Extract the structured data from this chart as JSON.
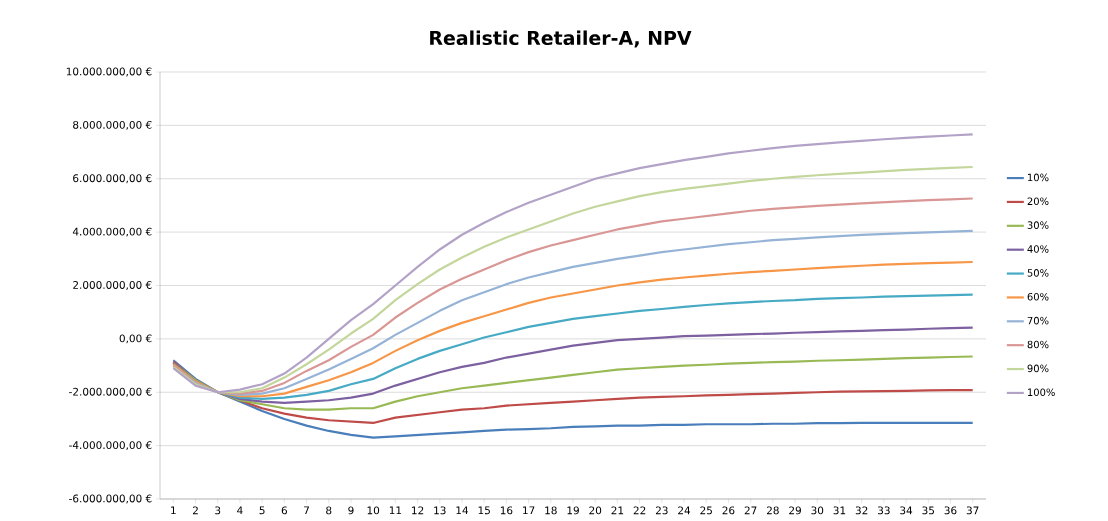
{
  "chart_data": {
    "type": "line",
    "title": "Realistic Retailer-A, NPV",
    "categories": [
      "1",
      "2",
      "3",
      "4",
      "5",
      "6",
      "7",
      "8",
      "9",
      "10",
      "11",
      "12",
      "13",
      "14",
      "15",
      "16",
      "17",
      "18",
      "19",
      "20",
      "21",
      "22",
      "23",
      "24",
      "25",
      "26",
      "27",
      "28",
      "29",
      "30",
      "31",
      "32",
      "33",
      "34",
      "35",
      "36",
      "37"
    ],
    "ylim": [
      -6000000,
      10000000
    ],
    "yticks": [
      {
        "value": -6000000,
        "label": "-6.000.000,00 €"
      },
      {
        "value": -4000000,
        "label": "-4.000.000,00 €"
      },
      {
        "value": -2000000,
        "label": "-2.000.000,00 €"
      },
      {
        "value": 0,
        "label": "0,00 €"
      },
      {
        "value": 2000000,
        "label": "2.000.000,00 €"
      },
      {
        "value": 4000000,
        "label": "4.000.000,00 €"
      },
      {
        "value": 6000000,
        "label": "6.000.000,00 €"
      },
      {
        "value": 8000000,
        "label": "8.000.000,00 €"
      },
      {
        "value": 10000000,
        "label": "10.000.000,00 €"
      }
    ],
    "grid": "y",
    "legend": "right",
    "marker": "none",
    "line_style": "solid",
    "series": [
      {
        "name": "10%",
        "color": "#4a7ebb",
        "values": [
          -800000,
          -1500000,
          -2000000,
          -2350000,
          -2700000,
          -3000000,
          -3250000,
          -3450000,
          -3600000,
          -3700000,
          -3650000,
          -3600000,
          -3550000,
          -3500000,
          -3450000,
          -3400000,
          -3380000,
          -3350000,
          -3300000,
          -3280000,
          -3250000,
          -3250000,
          -3220000,
          -3220000,
          -3200000,
          -3200000,
          -3200000,
          -3180000,
          -3180000,
          -3160000,
          -3160000,
          -3150000,
          -3150000,
          -3150000,
          -3150000,
          -3150000,
          -3150000
        ]
      },
      {
        "name": "20%",
        "color": "#be4b48",
        "values": [
          -850000,
          -1550000,
          -2000000,
          -2300000,
          -2600000,
          -2800000,
          -2950000,
          -3050000,
          -3100000,
          -3150000,
          -2950000,
          -2850000,
          -2750000,
          -2650000,
          -2600000,
          -2500000,
          -2450000,
          -2400000,
          -2350000,
          -2300000,
          -2250000,
          -2200000,
          -2170000,
          -2150000,
          -2120000,
          -2100000,
          -2070000,
          -2050000,
          -2020000,
          -2000000,
          -1980000,
          -1970000,
          -1960000,
          -1950000,
          -1930000,
          -1920000,
          -1920000
        ]
      },
      {
        "name": "30%",
        "color": "#98b954",
        "values": [
          -900000,
          -1550000,
          -2000000,
          -2300000,
          -2450000,
          -2600000,
          -2650000,
          -2650000,
          -2600000,
          -2600000,
          -2350000,
          -2150000,
          -2000000,
          -1850000,
          -1750000,
          -1650000,
          -1550000,
          -1450000,
          -1350000,
          -1250000,
          -1150000,
          -1100000,
          -1050000,
          -1000000,
          -970000,
          -930000,
          -900000,
          -870000,
          -850000,
          -820000,
          -800000,
          -780000,
          -750000,
          -720000,
          -700000,
          -680000,
          -660000
        ]
      },
      {
        "name": "40%",
        "color": "#7d60a0",
        "values": [
          -900000,
          -1600000,
          -2000000,
          -2250000,
          -2350000,
          -2400000,
          -2350000,
          -2300000,
          -2200000,
          -2050000,
          -1750000,
          -1500000,
          -1250000,
          -1050000,
          -900000,
          -700000,
          -550000,
          -400000,
          -250000,
          -150000,
          -50000,
          0,
          50000,
          100000,
          120000,
          150000,
          180000,
          200000,
          230000,
          250000,
          280000,
          300000,
          330000,
          350000,
          380000,
          400000,
          420000
        ]
      },
      {
        "name": "50%",
        "color": "#46aac5",
        "values": [
          -950000,
          -1600000,
          -2000000,
          -2200000,
          -2250000,
          -2200000,
          -2100000,
          -1950000,
          -1700000,
          -1500000,
          -1100000,
          -750000,
          -450000,
          -200000,
          50000,
          250000,
          450000,
          600000,
          750000,
          850000,
          950000,
          1050000,
          1120000,
          1200000,
          1270000,
          1330000,
          1380000,
          1420000,
          1450000,
          1500000,
          1530000,
          1550000,
          1580000,
          1600000,
          1620000,
          1640000,
          1660000
        ]
      },
      {
        "name": "60%",
        "color": "#f79646",
        "values": [
          -950000,
          -1600000,
          -2000000,
          -2150000,
          -2150000,
          -2050000,
          -1800000,
          -1550000,
          -1250000,
          -900000,
          -450000,
          -50000,
          300000,
          600000,
          850000,
          1100000,
          1350000,
          1550000,
          1700000,
          1850000,
          2000000,
          2120000,
          2220000,
          2300000,
          2370000,
          2440000,
          2500000,
          2550000,
          2600000,
          2650000,
          2700000,
          2740000,
          2780000,
          2810000,
          2840000,
          2860000,
          2880000
        ]
      },
      {
        "name": "70%",
        "color": "#95b3d7",
        "values": [
          -1000000,
          -1650000,
          -2000000,
          -2100000,
          -2050000,
          -1850000,
          -1500000,
          -1150000,
          -750000,
          -350000,
          150000,
          600000,
          1050000,
          1450000,
          1750000,
          2050000,
          2300000,
          2500000,
          2700000,
          2850000,
          3000000,
          3120000,
          3250000,
          3350000,
          3450000,
          3550000,
          3620000,
          3700000,
          3750000,
          3800000,
          3850000,
          3900000,
          3930000,
          3960000,
          3990000,
          4020000,
          4050000
        ]
      },
      {
        "name": "80%",
        "color": "#d99694",
        "values": [
          -1000000,
          -1700000,
          -2000000,
          -2050000,
          -1950000,
          -1650000,
          -1200000,
          -800000,
          -300000,
          150000,
          800000,
          1350000,
          1850000,
          2250000,
          2600000,
          2950000,
          3250000,
          3500000,
          3700000,
          3900000,
          4100000,
          4250000,
          4400000,
          4500000,
          4600000,
          4700000,
          4800000,
          4870000,
          4930000,
          4980000,
          5030000,
          5080000,
          5120000,
          5160000,
          5200000,
          5230000,
          5260000
        ]
      },
      {
        "name": "90%",
        "color": "#c3d69b",
        "values": [
          -1050000,
          -1700000,
          -2000000,
          -2000000,
          -1850000,
          -1450000,
          -950000,
          -400000,
          200000,
          750000,
          1450000,
          2050000,
          2600000,
          3050000,
          3450000,
          3800000,
          4100000,
          4400000,
          4700000,
          4950000,
          5150000,
          5350000,
          5500000,
          5620000,
          5720000,
          5820000,
          5920000,
          6000000,
          6070000,
          6130000,
          6180000,
          6230000,
          6280000,
          6330000,
          6370000,
          6410000,
          6440000
        ]
      },
      {
        "name": "100%",
        "color": "#b3a2c7",
        "values": [
          -1100000,
          -1750000,
          -2000000,
          -1900000,
          -1700000,
          -1300000,
          -700000,
          0,
          700000,
          1300000,
          2000000,
          2700000,
          3350000,
          3900000,
          4350000,
          4750000,
          5100000,
          5400000,
          5700000,
          6000000,
          6200000,
          6400000,
          6550000,
          6700000,
          6820000,
          6950000,
          7050000,
          7150000,
          7230000,
          7300000,
          7360000,
          7420000,
          7480000,
          7530000,
          7580000,
          7620000,
          7660000
        ]
      }
    ]
  }
}
